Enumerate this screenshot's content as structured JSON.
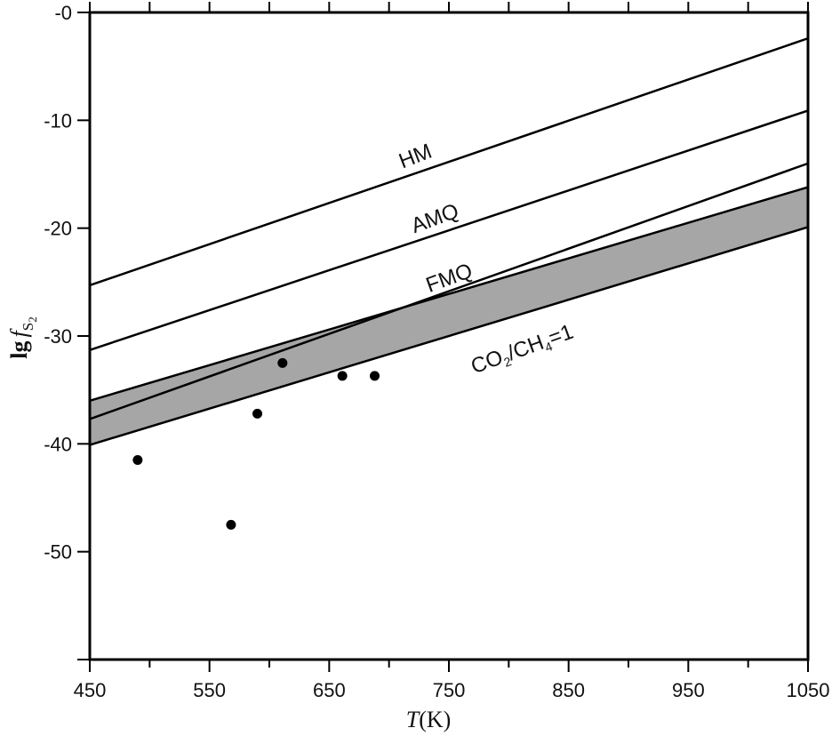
{
  "chart_data": {
    "type": "line",
    "title": "",
    "xlabel": {
      "var": "T",
      "unit": "(K)"
    },
    "ylabel": {
      "prefix": "lg",
      "var": "f",
      "sub": "S",
      "subsub": "2"
    },
    "xlim": [
      450,
      1050
    ],
    "ylim": [
      -60,
      0
    ],
    "xticks": [
      450,
      550,
      650,
      750,
      850,
      950,
      1050
    ],
    "xtick_labels": [
      "450",
      "550",
      "650",
      "750",
      "850",
      "950",
      "1050"
    ],
    "yticks": [
      0,
      -10,
      -20,
      -30,
      -40,
      -50
    ],
    "ytick_labels": [
      "-0",
      "-10",
      "-20",
      "-30",
      "-40",
      "-50"
    ],
    "grid": false,
    "series": [
      {
        "name": "HM",
        "kind": "line",
        "x": [
          450,
          1050
        ],
        "y": [
          -25.3,
          -2.4
        ]
      },
      {
        "name": "AMQ",
        "kind": "line",
        "x": [
          450,
          1050
        ],
        "y": [
          -31.3,
          -9.1
        ]
      },
      {
        "name": "FMQ",
        "kind": "line",
        "x": [
          450,
          1050
        ],
        "y": [
          -37.7,
          -14.0
        ]
      }
    ],
    "band": {
      "name": "CO2/CH4=1",
      "label_parts": [
        "CO",
        "2",
        "/CH",
        "4",
        "=1"
      ],
      "x": [
        450,
        1050
      ],
      "upper": [
        -36.0,
        -16.2
      ],
      "lower": [
        -40.1,
        -19.9
      ],
      "color": "#a6a6a6"
    },
    "points": {
      "name": "samples",
      "x": [
        490,
        568,
        590,
        611,
        661,
        688
      ],
      "y": [
        -41.5,
        -47.5,
        -37.2,
        -32.5,
        -33.7,
        -33.7
      ]
    }
  }
}
